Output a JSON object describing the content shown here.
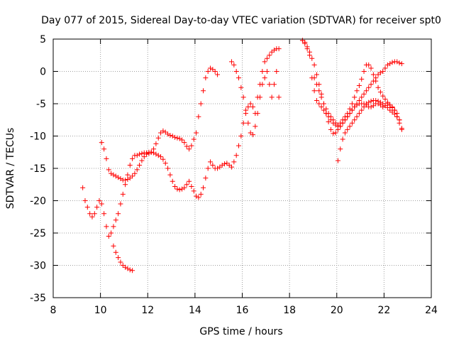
{
  "chart_data": {
    "type": "scatter",
    "title": "Day 077 of 2015, Sidereal Day-to-day VTEC variation (SDTVAR) for receiver spt0",
    "xlabel": "GPS time / hours",
    "ylabel": "SDTVAR / TECUs",
    "xlim": [
      8,
      24
    ],
    "ylim": [
      -35,
      5
    ],
    "xticks": [
      8,
      10,
      12,
      14,
      16,
      18,
      20,
      22,
      24
    ],
    "yticks": [
      -35,
      -30,
      -25,
      -20,
      -15,
      -10,
      -5,
      0,
      5
    ],
    "grid": true,
    "marker": "+",
    "series": [
      {
        "name": "SDTVAR",
        "color": "#ff0000",
        "x": [
          9.25,
          9.35,
          9.45,
          9.55,
          9.65,
          9.75,
          9.85,
          9.95,
          10.05,
          10.15,
          10.25,
          10.35,
          10.45,
          10.55,
          10.65,
          10.75,
          10.85,
          10.95,
          11.05,
          11.15,
          11.25,
          11.35,
          11.45,
          11.55,
          11.65,
          11.75,
          11.85,
          11.95,
          12.05,
          12.15,
          12.25,
          12.35,
          12.45,
          12.55,
          12.65,
          12.75,
          12.85,
          12.95,
          13.05,
          13.15,
          13.25,
          13.35,
          13.45,
          13.55,
          13.65,
          13.75,
          13.85,
          13.95,
          14.05,
          14.15,
          14.25,
          14.35,
          14.45,
          14.55,
          14.65,
          14.75,
          14.85,
          14.95,
          15.05,
          15.15,
          15.25,
          15.35,
          15.45,
          15.55,
          15.65,
          15.75,
          15.85,
          15.95,
          16.05,
          16.15,
          16.25,
          16.35,
          16.45,
          16.55,
          16.65,
          16.75,
          16.85,
          16.95,
          17.05,
          17.15,
          17.25,
          17.35,
          17.45,
          17.55,
          18.55,
          18.65,
          18.75,
          18.85,
          18.95,
          19.05,
          19.15,
          19.25,
          19.35,
          19.45,
          19.55,
          19.65,
          19.75,
          19.85,
          19.95,
          20.05,
          20.15,
          20.25,
          20.35,
          20.45,
          20.55,
          20.65,
          20.75,
          20.85,
          20.95,
          21.05,
          21.15,
          21.25,
          21.35,
          21.45,
          21.55,
          21.65,
          21.75,
          21.85,
          21.95,
          22.05,
          22.15,
          22.25,
          22.35,
          22.45,
          22.55,
          22.65,
          22.75
        ],
        "y": [
          -18,
          -20,
          -21,
          -22,
          -22.5,
          -22,
          -21,
          -20,
          -20.5,
          -22,
          -24,
          -25.5,
          -25,
          -24,
          -23,
          -22,
          -20.5,
          -19,
          -17.5,
          -16,
          -14.5,
          -13.5,
          -13,
          -13,
          -12.8,
          -12.7,
          -12.6,
          -12.6,
          -12.5,
          -12.5,
          -12.6,
          -12.8,
          -13,
          -13.2,
          -13.6,
          -14.2,
          -15,
          -16,
          -17,
          -17.8,
          -18.2,
          -18.3,
          -18.2,
          -18,
          -17.5,
          -17,
          -17.8,
          -18.5,
          -19.3,
          -19.5,
          -19,
          -18,
          -16.5,
          -15,
          -14,
          -14.5,
          -15,
          -15,
          -14.8,
          -14.5,
          -14.3,
          -14.2,
          -14.5,
          -14.8,
          -14,
          -13,
          -11.5,
          -10,
          -8,
          -6.5,
          -5.5,
          -5,
          -5.5,
          -6.5,
          -4,
          -2,
          0,
          1.5,
          2,
          2.5,
          3,
          3.3,
          3.5,
          3.5,
          4.8,
          4.3,
          3.5,
          2.5,
          -1,
          -3,
          -4.5,
          -5,
          -5.5,
          -6,
          -6.5,
          -7,
          -7.5,
          -8,
          -8.3,
          -8.5,
          -8.5,
          -8,
          -7.5,
          -7,
          -6.5,
          -6,
          -5.5,
          -5.2,
          -5,
          -5,
          -5,
          -5.2,
          -5.5,
          -5.5,
          -5.3,
          -5,
          -5,
          -5.2,
          -5.5,
          -5.3,
          -5,
          -5.2,
          -5.5,
          -6,
          -7,
          -8,
          -9
        ]
      },
      {
        "name": "SDTVAR",
        "color": "#ff0000",
        "x": [
          10.05,
          10.15,
          10.25,
          10.35,
          10.45,
          10.55,
          10.65,
          10.75,
          10.85,
          10.95,
          11.05,
          11.15,
          11.25,
          11.35,
          11.45,
          11.55,
          11.65,
          11.75,
          11.85,
          11.95,
          12.05,
          12.15,
          12.25,
          12.35,
          12.45,
          12.55,
          12.65,
          12.75,
          12.85,
          12.95,
          13.05,
          13.15,
          13.25,
          13.35,
          13.45,
          13.55,
          13.65,
          13.75,
          13.85,
          13.95,
          14.05,
          14.15,
          14.25,
          14.35,
          14.45,
          14.55,
          14.65,
          14.75,
          14.85,
          14.95
        ],
        "y": [
          -11,
          -12,
          -13.5,
          -15.2,
          -15.8,
          -16,
          -16.2,
          -16.4,
          -16.6,
          -16.8,
          -16.8,
          -16.7,
          -16.5,
          -16.2,
          -15.8,
          -15.2,
          -14.5,
          -13.8,
          -13.2,
          -12.8,
          -12.7,
          -12.5,
          -12,
          -11.2,
          -10.3,
          -9.5,
          -9.2,
          -9.4,
          -9.7,
          -9.9,
          -10,
          -10.2,
          -10.3,
          -10.4,
          -10.6,
          -11,
          -11.6,
          -12,
          -11.5,
          -10.5,
          -9.5,
          -7,
          -5,
          -3,
          -1,
          0,
          0.5,
          0.3,
          0,
          -0.5
        ]
      },
      {
        "name": "SDTVAR",
        "color": "#ff0000",
        "x": [
          10.55,
          10.65,
          10.75,
          10.85,
          10.95,
          11.05,
          11.15,
          11.25,
          11.35
        ],
        "y": [
          -27,
          -28,
          -28.8,
          -29.5,
          -30,
          -30.3,
          -30.5,
          -30.7,
          -30.8
        ]
      },
      {
        "name": "SDTVAR",
        "color": "#ff0000",
        "x": [
          15.55,
          15.65,
          15.75,
          15.85,
          15.95,
          16.05,
          16.15,
          16.25,
          16.35,
          16.45,
          16.55,
          16.65,
          16.75,
          16.85,
          16.95,
          17.05,
          17.15,
          17.25,
          17.35,
          17.45,
          17.55
        ],
        "y": [
          1.5,
          1,
          0,
          -1,
          -2.5,
          -4,
          -6,
          -8,
          -9.5,
          -9.8,
          -8.5,
          -6.5,
          -4,
          -2,
          -1,
          0,
          -2,
          -4,
          -2,
          0,
          -4
        ]
      },
      {
        "name": "SDTVAR",
        "color": "#ff0000",
        "x": [
          18.55,
          18.65,
          18.75,
          18.85,
          18.95,
          19.05,
          19.15,
          19.25,
          19.35,
          19.45,
          19.55,
          19.65,
          19.75,
          19.85,
          19.95,
          20.05,
          20.15,
          20.25,
          20.35,
          20.45,
          20.55,
          20.65,
          20.75,
          20.85,
          20.95,
          21.05,
          21.15,
          21.25,
          21.35,
          21.45,
          21.55,
          21.65,
          21.75,
          21.85,
          21.95,
          22.05,
          22.15,
          22.25,
          22.35,
          22.45,
          22.55,
          22.65,
          22.75
        ],
        "y": [
          4.8,
          4.5,
          3.8,
          3,
          2,
          1,
          -0.5,
          -2,
          -3.5,
          -5,
          -6.5,
          -7.8,
          -9,
          -9.6,
          -9.5,
          -9,
          -8.5,
          -8,
          -7.5,
          -7,
          -6.5,
          -6,
          -5.5,
          -5,
          -4.5,
          -4,
          -3.5,
          -3,
          -2.5,
          -2,
          -1.5,
          -1,
          -0.5,
          -0.2,
          0,
          0.5,
          1,
          1.2,
          1.4,
          1.5,
          1.5,
          1.3,
          1.2
        ]
      },
      {
        "name": "SDTVAR",
        "color": "#ff0000",
        "x": [
          19.05,
          19.15,
          19.25,
          19.35,
          19.45,
          19.55,
          19.65,
          19.75,
          19.85,
          19.95,
          20.05,
          20.15,
          20.25,
          20.35,
          20.45,
          20.55,
          20.65,
          20.75,
          20.85,
          20.95,
          21.05,
          21.15,
          21.25,
          21.35,
          21.45,
          21.55,
          21.65,
          21.75,
          21.85,
          21.95,
          22.05,
          22.15,
          22.25,
          22.35,
          22.45,
          22.55,
          22.65,
          22.75
        ],
        "y": [
          -1,
          -2,
          -3,
          -4,
          -5,
          -5.8,
          -6.5,
          -7,
          -7.5,
          -8,
          -8.3,
          -8,
          -7.5,
          -7,
          -6.5,
          -5.8,
          -5,
          -4,
          -3,
          -2.2,
          -1.2,
          0,
          1,
          1,
          0.5,
          -0.5,
          -1.5,
          -2.5,
          -3.2,
          -3.8,
          -4.3,
          -4.8,
          -5.2,
          -5.6,
          -6,
          -6.5,
          -7.5,
          -8.8
        ]
      },
      {
        "name": "SDTVAR",
        "color": "#ff0000",
        "x": [
          20.05,
          20.15,
          20.25,
          20.35,
          20.45,
          20.55,
          20.65,
          20.75,
          20.85,
          20.95,
          21.05,
          21.15,
          21.25,
          21.35,
          21.45,
          21.55,
          21.65,
          21.75,
          21.85,
          21.95,
          22.05,
          22.15,
          22.25,
          22.35,
          22.45,
          22.55,
          22.65
        ],
        "y": [
          -13.8,
          -12,
          -10.5,
          -9.5,
          -9,
          -8.5,
          -8,
          -7.5,
          -7,
          -6.5,
          -6,
          -5.5,
          -5,
          -4.8,
          -4.6,
          -4.5,
          -4.5,
          -4.6,
          -4.8,
          -5,
          -5.3,
          -5.6,
          -6,
          -6.3,
          -6.6,
          -7,
          -7.5
        ]
      }
    ]
  }
}
